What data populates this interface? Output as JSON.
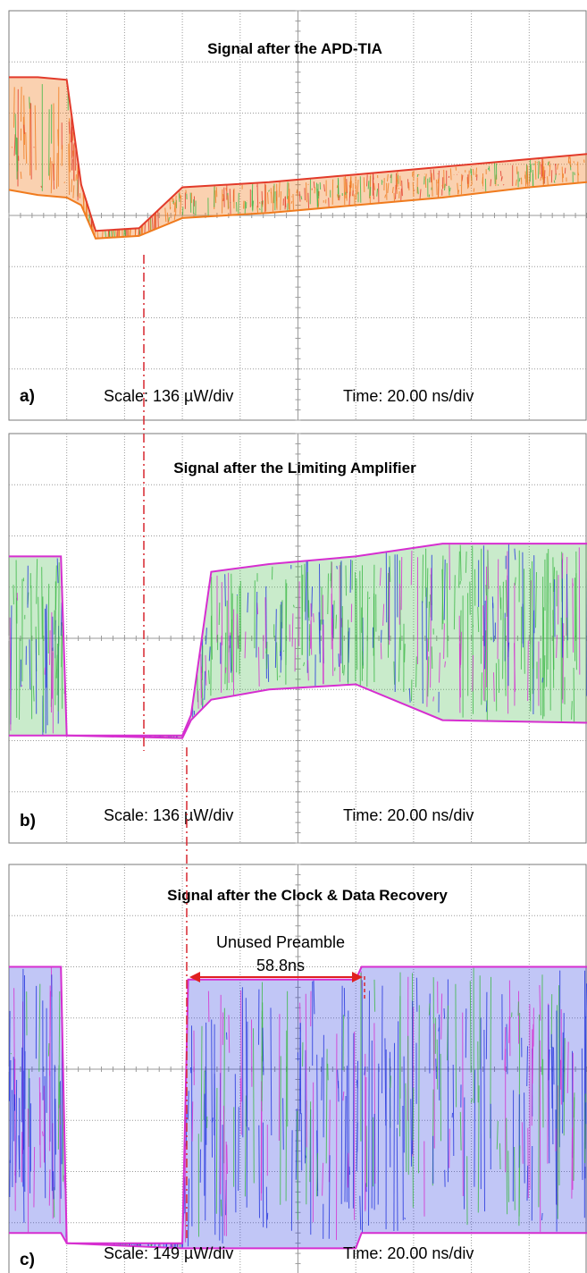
{
  "figure": {
    "colors": {
      "grid": "#9a9a9a",
      "frame": "#7a7a7a",
      "trace_orange": "#f07b1e",
      "trace_red": "#e23a2a",
      "trace_green": "#3cb846",
      "trace_blue": "#2233dd",
      "trace_magenta": "#d62ed0",
      "marker": "#d7262f",
      "arrow": "#e02020"
    },
    "preamble_label": "Unused Preamble",
    "preamble_duration": "58.8ns"
  },
  "chart_data": [
    {
      "type": "line",
      "title": "Signal after the APD-TIA",
      "panel_label": "a)",
      "scale_text": "Scale: 136 µW/div",
      "time_text": "Time: 20.00 ns/div",
      "x": [
        0,
        10,
        20,
        25,
        30,
        45,
        60,
        90,
        120,
        150,
        180,
        200
      ],
      "envelope_top": [
        2.7,
        2.7,
        2.65,
        0.6,
        -0.3,
        -0.25,
        0.55,
        0.65,
        0.8,
        0.95,
        1.1,
        1.2
      ],
      "envelope_bottom": [
        0.5,
        0.4,
        0.35,
        0.2,
        -0.45,
        -0.4,
        -0.05,
        0.05,
        0.2,
        0.35,
        0.55,
        0.65
      ],
      "xlim": [
        0,
        200
      ],
      "ylim": [
        -4,
        4
      ]
    },
    {
      "type": "line",
      "title": "Signal after the Limiting Amplifier",
      "panel_label": "b)",
      "scale_text": "Scale: 136 µW/div",
      "time_text": "Time: 20.00 ns/div",
      "x": [
        0,
        18,
        20,
        60,
        63,
        70,
        90,
        120,
        150,
        200
      ],
      "envelope_top": [
        1.6,
        1.6,
        -1.9,
        -1.9,
        -1.5,
        1.3,
        1.45,
        1.6,
        1.85,
        1.85
      ],
      "envelope_bottom": [
        -1.9,
        -1.9,
        -1.9,
        -1.95,
        -1.6,
        -1.2,
        -1.0,
        -0.9,
        -1.6,
        -1.65
      ],
      "xlim": [
        0,
        200
      ],
      "ylim": [
        -4,
        4
      ]
    },
    {
      "type": "line",
      "title": "Signal after the Clock & Data Recovery",
      "panel_label": "c)",
      "scale_text": "Scale: 149 µW/div",
      "time_text": "Time: 20.00 ns/div",
      "x": [
        0,
        18,
        20,
        60,
        62,
        120,
        122,
        200
      ],
      "envelope_top": [
        2.0,
        2.0,
        -3.4,
        -3.4,
        1.75,
        1.75,
        2.0,
        2.0
      ],
      "envelope_bottom": [
        -3.2,
        -3.2,
        -3.4,
        -3.5,
        -3.5,
        -3.5,
        -3.2,
        -3.2
      ],
      "preamble_interval": [
        62,
        120.8
      ],
      "xlim": [
        0,
        200
      ],
      "ylim": [
        -4,
        4
      ]
    }
  ]
}
